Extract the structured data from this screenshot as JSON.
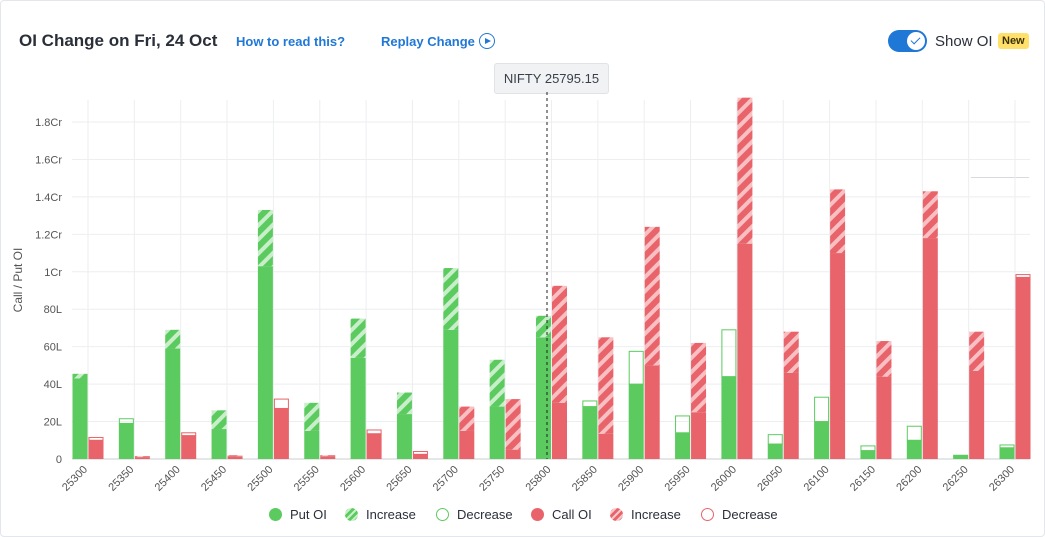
{
  "header": {
    "title": "OI Change on Fri, 24 Oct",
    "how_to_read": "How to read this?",
    "replay": "Replay Change",
    "show_oi_label": "Show OI",
    "show_oi_on": true,
    "new_badge": "New"
  },
  "spot": {
    "label": "NIFTY 25795.15",
    "value": 25795.15
  },
  "colors": {
    "put": "#5ccb5f",
    "call": "#e8636a",
    "accent": "#1f77d6",
    "badge": "#ffe06a"
  },
  "legend": {
    "put_oi": "Put OI",
    "put_increase": "Increase",
    "put_decrease": "Decrease",
    "call_oi": "Call OI",
    "call_increase": "Increase",
    "call_decrease": "Decrease"
  },
  "chart_data": {
    "type": "bar",
    "ylabel": "Call / Put OI",
    "yticks": [
      "0",
      "20L",
      "40L",
      "60L",
      "80L",
      "1Cr",
      "1.2Cr",
      "1.4Cr",
      "1.6Cr",
      "1.8Cr"
    ],
    "ylim_lakh": [
      0,
      190
    ],
    "grid": true,
    "categories": [
      "25300",
      "25350",
      "25400",
      "25450",
      "25500",
      "25550",
      "25600",
      "25650",
      "25700",
      "25750",
      "25800",
      "25850",
      "25900",
      "25950",
      "26000",
      "26050",
      "26100",
      "26150",
      "26200",
      "26250",
      "26300"
    ],
    "unit": "lakh",
    "series": [
      {
        "name": "Put OI",
        "base": [
          43,
          19,
          59,
          16,
          103,
          15,
          54,
          24,
          69,
          28,
          65,
          28,
          40,
          14,
          44,
          8,
          20,
          4.5,
          10,
          1.5,
          6
        ],
        "change": [
          2.5,
          2.5,
          10,
          10,
          30,
          15,
          21,
          11.5,
          33,
          25,
          11.5,
          3,
          17.5,
          9,
          25,
          5,
          13,
          2.5,
          7.5,
          0.5,
          1.5
        ],
        "change_type": [
          "increase",
          "decrease",
          "increase",
          "increase",
          "increase",
          "increase",
          "increase",
          "increase",
          "increase",
          "increase",
          "increase",
          "decrease",
          "decrease",
          "decrease",
          "decrease",
          "decrease",
          "decrease",
          "decrease",
          "decrease",
          "decrease",
          "decrease"
        ]
      },
      {
        "name": "Call OI",
        "base": [
          10,
          1,
          12.5,
          1.5,
          27,
          1.5,
          13.5,
          2.5,
          15,
          5,
          30,
          13.5,
          50,
          25,
          115,
          46,
          110,
          44,
          118,
          47,
          97
        ],
        "change": [
          1.5,
          0.5,
          1.5,
          0.5,
          5,
          0.5,
          2,
          1.5,
          13,
          27,
          62.5,
          51.5,
          74,
          37,
          78,
          22,
          34,
          19,
          25,
          21,
          1.5
        ],
        "change_type": [
          "decrease",
          "increase",
          "decrease",
          "increase",
          "decrease",
          "increase",
          "decrease",
          "decrease",
          "increase",
          "increase",
          "increase",
          "increase",
          "increase",
          "increase",
          "increase",
          "increase",
          "increase",
          "increase",
          "increase",
          "increase",
          "decrease"
        ]
      }
    ]
  }
}
